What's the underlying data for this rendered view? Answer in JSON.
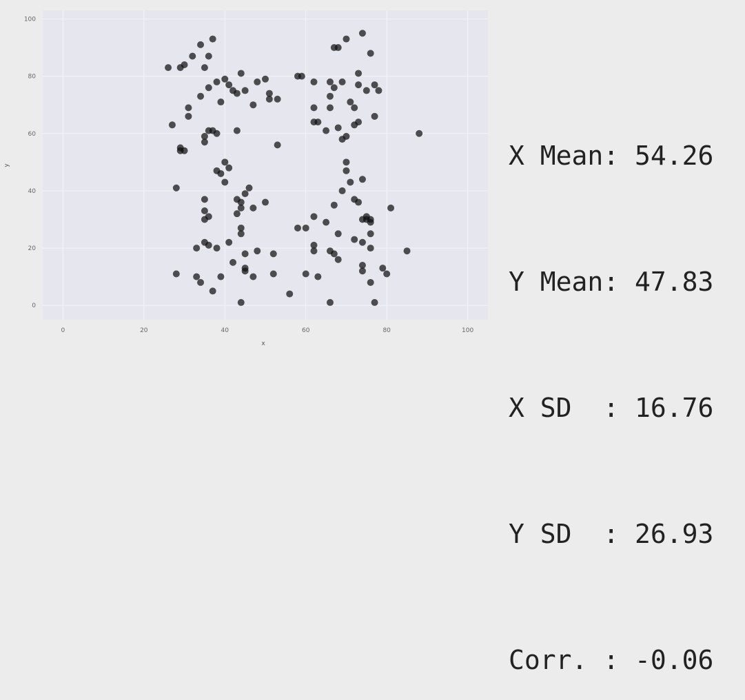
{
  "chart_data": {
    "type": "scatter",
    "title": "",
    "xlabel": "x",
    "ylabel": "y",
    "xlim": [
      -5,
      105
    ],
    "ylim": [
      -5,
      103
    ],
    "x_ticks": [
      0,
      20,
      40,
      60,
      80,
      100
    ],
    "y_ticks": [
      0,
      20,
      40,
      60,
      80,
      100
    ],
    "grid": true,
    "colors": {
      "plot_bg": "#e6e7ee",
      "grid": "#f4f4f8",
      "point": "#111111"
    },
    "points": [
      [
        26,
        83
      ],
      [
        29,
        83
      ],
      [
        30,
        84
      ],
      [
        32,
        87
      ],
      [
        34,
        91
      ],
      [
        37,
        93
      ],
      [
        35,
        83
      ],
      [
        36,
        87
      ],
      [
        31,
        69
      ],
      [
        31,
        66
      ],
      [
        34,
        73
      ],
      [
        36,
        76
      ],
      [
        38,
        78
      ],
      [
        39,
        71
      ],
      [
        40,
        79
      ],
      [
        41,
        77
      ],
      [
        42,
        75
      ],
      [
        43,
        74
      ],
      [
        44,
        81
      ],
      [
        45,
        75
      ],
      [
        47,
        70
      ],
      [
        48,
        78
      ],
      [
        50,
        79
      ],
      [
        51,
        74
      ],
      [
        51,
        72
      ],
      [
        53,
        72
      ],
      [
        58,
        80
      ],
      [
        59,
        80
      ],
      [
        62,
        78
      ],
      [
        62,
        69
      ],
      [
        62,
        64
      ],
      [
        63,
        64
      ],
      [
        65,
        61
      ],
      [
        66,
        69
      ],
      [
        66,
        73
      ],
      [
        66,
        78
      ],
      [
        67,
        76
      ],
      [
        67,
        90
      ],
      [
        68,
        90
      ],
      [
        69,
        78
      ],
      [
        70,
        93
      ],
      [
        71,
        71
      ],
      [
        72,
        69
      ],
      [
        73,
        81
      ],
      [
        74,
        95
      ],
      [
        73,
        77
      ],
      [
        75,
        75
      ],
      [
        76,
        88
      ],
      [
        77,
        77
      ],
      [
        78,
        75
      ],
      [
        77,
        66
      ],
      [
        73,
        64
      ],
      [
        72,
        63
      ],
      [
        69,
        58
      ],
      [
        70,
        59
      ],
      [
        68,
        62
      ],
      [
        27,
        63
      ],
      [
        29,
        54
      ],
      [
        29,
        55
      ],
      [
        30,
        54
      ],
      [
        35,
        57
      ],
      [
        35,
        59
      ],
      [
        36,
        61
      ],
      [
        37,
        61
      ],
      [
        38,
        60
      ],
      [
        43,
        61
      ],
      [
        53,
        56
      ],
      [
        88,
        60
      ],
      [
        38,
        47
      ],
      [
        39,
        46
      ],
      [
        40,
        43
      ],
      [
        40,
        50
      ],
      [
        41,
        48
      ],
      [
        28,
        41
      ],
      [
        35,
        37
      ],
      [
        35,
        33
      ],
      [
        35,
        30
      ],
      [
        36,
        31
      ],
      [
        43,
        37
      ],
      [
        44,
        36
      ],
      [
        44,
        34
      ],
      [
        45,
        39
      ],
      [
        46,
        41
      ],
      [
        47,
        34
      ],
      [
        50,
        36
      ],
      [
        43,
        32
      ],
      [
        44,
        27
      ],
      [
        44,
        25
      ],
      [
        41,
        22
      ],
      [
        36,
        21
      ],
      [
        35,
        22
      ],
      [
        33,
        20
      ],
      [
        38,
        20
      ],
      [
        58,
        27
      ],
      [
        60,
        27
      ],
      [
        62,
        31
      ],
      [
        62,
        21
      ],
      [
        62,
        19
      ],
      [
        65,
        29
      ],
      [
        66,
        19
      ],
      [
        67,
        35
      ],
      [
        68,
        25
      ],
      [
        69,
        40
      ],
      [
        70,
        47
      ],
      [
        70,
        50
      ],
      [
        71,
        43
      ],
      [
        72,
        37
      ],
      [
        73,
        36
      ],
      [
        74,
        44
      ],
      [
        74,
        30
      ],
      [
        75,
        31
      ],
      [
        75,
        30
      ],
      [
        76,
        30
      ],
      [
        76,
        29
      ],
      [
        76,
        25
      ],
      [
        74,
        22
      ],
      [
        76,
        20
      ],
      [
        81,
        34
      ],
      [
        85,
        19
      ],
      [
        28,
        11
      ],
      [
        33,
        10
      ],
      [
        34,
        8
      ],
      [
        37,
        5
      ],
      [
        39,
        10
      ],
      [
        42,
        15
      ],
      [
        44,
        1
      ],
      [
        45,
        13
      ],
      [
        45,
        12
      ],
      [
        45,
        18
      ],
      [
        47,
        10
      ],
      [
        48,
        19
      ],
      [
        52,
        11
      ],
      [
        52,
        18
      ],
      [
        56,
        4
      ],
      [
        60,
        11
      ],
      [
        63,
        10
      ],
      [
        66,
        1
      ],
      [
        67,
        18
      ],
      [
        68,
        16
      ],
      [
        72,
        23
      ],
      [
        74,
        14
      ],
      [
        74,
        12
      ],
      [
        76,
        8
      ],
      [
        77,
        1
      ],
      [
        79,
        13
      ],
      [
        80,
        11
      ]
    ]
  },
  "stats": {
    "x_mean": "X Mean: 54.26",
    "y_mean": "Y Mean: 47.83",
    "x_sd": "X SD  : 16.76",
    "y_sd": "Y SD  : 26.93",
    "corr": "Corr. : -0.06"
  }
}
